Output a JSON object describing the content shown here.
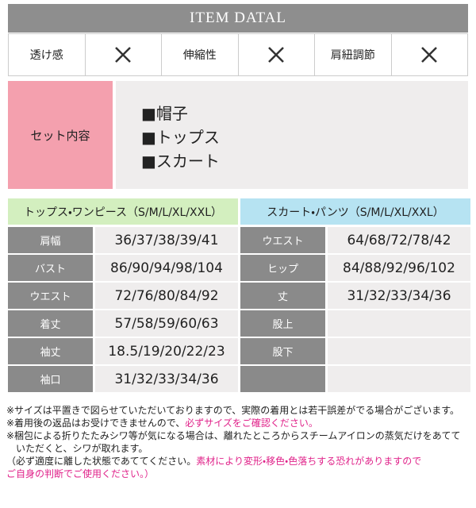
{
  "header": {
    "title": "ITEM DATAL"
  },
  "features": [
    "透け感",
    "伸縮性",
    "肩紐調節"
  ],
  "set": {
    "label": "セット内容",
    "items": [
      "■帽子",
      "■トップス",
      "■スカート"
    ]
  },
  "tables": [
    {
      "title": "トップス・ワンピース（S/M/L/XL/XXL）",
      "color": "#d3efbf",
      "rows": [
        [
          "肩幅",
          "36/37/38/39/41"
        ],
        [
          "バスト",
          "86/90/94/98/104"
        ],
        [
          "ウエスト",
          "72/76/80/84/92"
        ],
        [
          "着丈",
          "57/58/59/60/63"
        ],
        [
          "袖丈",
          "18.5/19/20/22/23"
        ],
        [
          "袖口",
          "31/32/33/34/36"
        ]
      ]
    },
    {
      "title": "スカート・パンツ（S/M/L/XL/XXL）",
      "color": "#b6e3f2",
      "rows": [
        [
          "ウエスト",
          "64/68/72/78/42"
        ],
        [
          "ヒップ",
          "84/88/92/96/102"
        ],
        [
          "丈",
          "31/32/33/34/36"
        ],
        [
          "股上"
        ],
        [
          "股下"
        ]
      ]
    }
  ],
  "notes": [
    [
      {
        "text": "※サイズは平置きで図らせていただいておりますので、実際の着用とは若干誤差がでる場合がございます。"
      }
    ],
    [
      {
        "text": "※着用後の返品はお受けできませんので、"
      },
      {
        "text": "必ずサイズをご確認ください。",
        "highlight": true
      }
    ],
    [
      {
        "text": "※梱包による折りたたみシワ等が気になる場合は、離れたところからスチームアイロンの蒸気だけをあてて"
      }
    ],
    [
      {
        "text": "　いただくと、シワが取れます。"
      }
    ],
    [
      {
        "text": "（必ず適度に離した状態であててください。"
      },
      {
        "text": "素材により変形・移色・色落ちする恐れがありますので",
        "highlight": true
      }
    ],
    [
      {
        "text": "ご自身の判断でご使用ください。）",
        "highlight": true
      }
    ]
  ]
}
